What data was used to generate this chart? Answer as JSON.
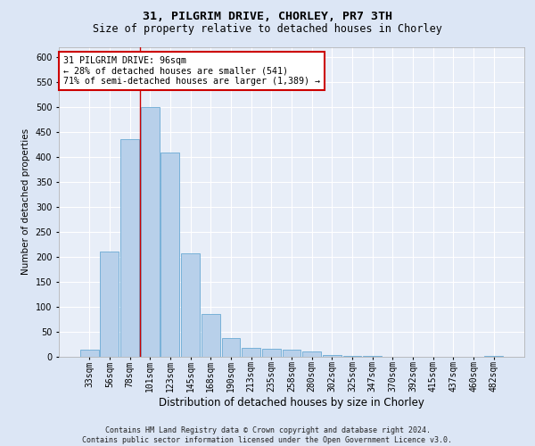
{
  "title1": "31, PILGRIM DRIVE, CHORLEY, PR7 3TH",
  "title2": "Size of property relative to detached houses in Chorley",
  "xlabel": "Distribution of detached houses by size in Chorley",
  "ylabel": "Number of detached properties",
  "footnote": "Contains HM Land Registry data © Crown copyright and database right 2024.\nContains public sector information licensed under the Open Government Licence v3.0.",
  "bin_labels": [
    "33sqm",
    "56sqm",
    "78sqm",
    "101sqm",
    "123sqm",
    "145sqm",
    "168sqm",
    "190sqm",
    "213sqm",
    "235sqm",
    "258sqm",
    "280sqm",
    "302sqm",
    "325sqm",
    "347sqm",
    "370sqm",
    "392sqm",
    "415sqm",
    "437sqm",
    "460sqm",
    "482sqm"
  ],
  "bar_values": [
    15,
    210,
    435,
    500,
    408,
    207,
    85,
    37,
    18,
    16,
    14,
    10,
    4,
    1,
    1,
    0,
    0,
    0,
    0,
    0,
    2
  ],
  "bar_color": "#b8d0ea",
  "bar_edge_color": "#6aaad4",
  "vline_index": 3,
  "annotation_text": "31 PILGRIM DRIVE: 96sqm\n← 28% of detached houses are smaller (541)\n71% of semi-detached houses are larger (1,389) →",
  "annotation_box_color": "white",
  "annotation_box_edge_color": "#cc0000",
  "vline_color": "#cc0000",
  "ylim": [
    0,
    620
  ],
  "yticks": [
    0,
    50,
    100,
    150,
    200,
    250,
    300,
    350,
    400,
    450,
    500,
    550,
    600
  ],
  "bg_color": "#dce6f5",
  "plot_bg_color": "#e8eef8",
  "grid_color": "#ffffff",
  "title1_fontsize": 9.5,
  "title2_fontsize": 8.5,
  "xlabel_fontsize": 8.5,
  "ylabel_fontsize": 7.5,
  "tick_fontsize": 7,
  "footnote_fontsize": 6
}
